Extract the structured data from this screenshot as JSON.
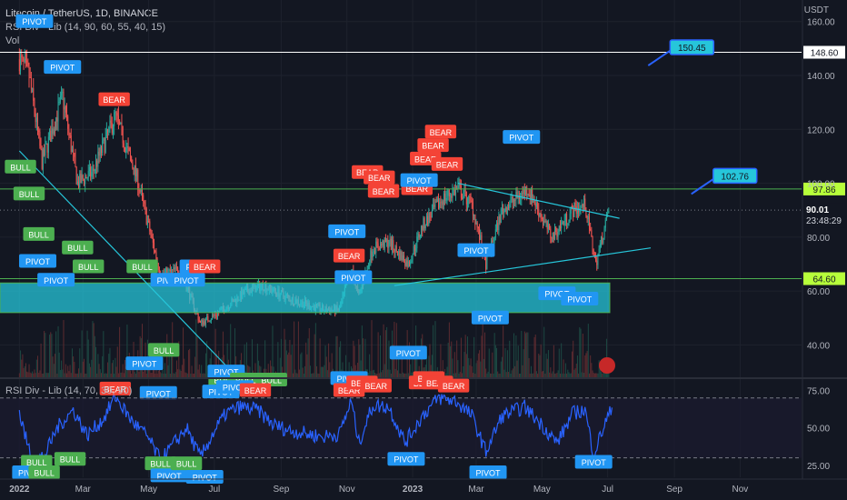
{
  "header": {
    "symbol": "Litecoin / TetherUS, 1D, BINANCE",
    "indicator": "RSI Div - Lib (14, 90, 60, 55, 40, 15)",
    "volume": "Vol",
    "currency": "USDT"
  },
  "colors": {
    "background": "#131722",
    "candle_up": "#26a69a",
    "candle_down": "#ef5350",
    "pivot": "#2196f3",
    "bull": "#4caf50",
    "bear": "#f44336",
    "zone": "#26c6da",
    "rsi_line": "#2962ff"
  },
  "chart_data": [
    {
      "type": "candlestick",
      "title": "Litecoin / TetherUS, 1D, BINANCE",
      "y_unit": "USDT",
      "y_range": [
        28,
        168
      ],
      "y_ticks": [
        "160.00",
        "140.00",
        "120.00",
        "100.00",
        "80.00",
        "60.00",
        "40.00"
      ],
      "x_ticks": [
        "2022",
        "Mar",
        "May",
        "Jul",
        "Sep",
        "Nov",
        "2023",
        "Mar",
        "May",
        "Jul",
        "Sep",
        "Nov"
      ],
      "price_trend_points": [
        [
          "2022-01-01",
          146
        ],
        [
          "2022-01-10",
          140
        ],
        [
          "2022-01-22",
          108
        ],
        [
          "2022-02-10",
          132
        ],
        [
          "2022-02-24",
          100
        ],
        [
          "2022-03-10",
          104
        ],
        [
          "2022-03-31",
          125
        ],
        [
          "2022-04-20",
          102
        ],
        [
          "2022-05-12",
          66
        ],
        [
          "2022-05-30",
          68
        ],
        [
          "2022-06-18",
          48
        ],
        [
          "2022-07-05",
          52
        ],
        [
          "2022-07-31",
          60
        ],
        [
          "2022-08-15",
          62
        ],
        [
          "2022-09-10",
          57
        ],
        [
          "2022-10-10",
          53
        ],
        [
          "2022-10-25",
          53
        ],
        [
          "2022-11-05",
          68
        ],
        [
          "2022-11-12",
          58
        ],
        [
          "2022-11-25",
          76
        ],
        [
          "2022-12-10",
          78
        ],
        [
          "2022-12-28",
          70
        ],
        [
          "2023-01-10",
          84
        ],
        [
          "2023-01-28",
          94
        ],
        [
          "2023-02-12",
          98
        ],
        [
          "2023-02-25",
          92
        ],
        [
          "2023-03-10",
          70
        ],
        [
          "2023-03-25",
          90
        ],
        [
          "2023-04-18",
          98
        ],
        [
          "2023-05-10",
          80
        ],
        [
          "2023-05-30",
          90
        ],
        [
          "2023-06-10",
          92
        ],
        [
          "2023-06-20",
          70
        ],
        [
          "2023-07-02",
          90
        ]
      ],
      "horizontal_levels": [
        {
          "label": "148.60",
          "value": 148.6,
          "color": "#ffffff"
        },
        {
          "label": "97.86",
          "value": 97.86,
          "color": "#4caf50"
        },
        {
          "label": "64.60",
          "value": 64.6,
          "color": "#4caf50"
        }
      ],
      "last_price": {
        "label": "90.01",
        "countdown": "23:48:29",
        "value": 90.01
      },
      "zone": {
        "low": 52,
        "high": 63
      },
      "targets": [
        {
          "label": "150.45",
          "date": "2023-09-02",
          "value": 150.45
        },
        {
          "label": "102.76",
          "date": "2023-10-12",
          "value": 102.76
        }
      ],
      "trendlines": [
        {
          "from": [
            "2022-01-01",
            112
          ],
          "to": [
            "2022-07-15",
            31
          ]
        },
        {
          "from": [
            "2023-02-12",
            100
          ],
          "to": [
            "2023-07-12",
            87
          ]
        },
        {
          "from": [
            "2022-12-15",
            62
          ],
          "to": [
            "2023-08-10",
            76
          ]
        }
      ],
      "signals": [
        {
          "label": "PIVOT",
          "date": "2022-01-15",
          "value": 160,
          "color": "#2196f3"
        },
        {
          "label": "PIVOT",
          "date": "2022-02-10",
          "value": 143,
          "color": "#2196f3"
        },
        {
          "label": "BEAR",
          "date": "2022-03-30",
          "value": 131,
          "color": "#f44336"
        },
        {
          "label": "BULL",
          "date": "2022-01-02",
          "value": 106,
          "color": "#4caf50"
        },
        {
          "label": "BULL",
          "date": "2022-01-10",
          "value": 96,
          "color": "#4caf50"
        },
        {
          "label": "BULL",
          "date": "2022-01-19",
          "value": 81,
          "color": "#4caf50"
        },
        {
          "label": "BULL",
          "date": "2022-02-24",
          "value": 76,
          "color": "#4caf50"
        },
        {
          "label": "BULL",
          "date": "2022-03-06",
          "value": 69,
          "color": "#4caf50"
        },
        {
          "label": "PIVOT",
          "date": "2022-01-18",
          "value": 71,
          "color": "#2196f3"
        },
        {
          "label": "PIVOT",
          "date": "2022-02-04",
          "value": 64,
          "color": "#2196f3"
        },
        {
          "label": "BULL",
          "date": "2022-04-25",
          "value": 69,
          "color": "#4caf50"
        },
        {
          "label": "PIVOT",
          "date": "2022-05-20",
          "value": 64,
          "color": "#2196f3"
        },
        {
          "label": "PIVOT",
          "date": "2022-06-05",
          "value": 64,
          "color": "#2196f3"
        },
        {
          "label": "PIVOT",
          "date": "2022-06-16",
          "value": 69,
          "color": "#2196f3"
        },
        {
          "label": "BEAR",
          "date": "2022-06-22",
          "value": 69,
          "color": "#f44336"
        },
        {
          "label": "BULL",
          "date": "2022-05-15",
          "value": 38,
          "color": "#4caf50"
        },
        {
          "label": "PIVOT",
          "date": "2022-04-27",
          "value": 33,
          "color": "#2196f3"
        },
        {
          "label": "PIVOT",
          "date": "2022-05-10",
          "value": 22,
          "color": "#2196f3"
        },
        {
          "label": "BULL",
          "date": "2022-07-10",
          "value": 27,
          "color": "#4caf50"
        },
        {
          "label": "PIVOT",
          "date": "2022-07-12",
          "value": 30,
          "color": "#2196f3"
        },
        {
          "label": "BULL",
          "date": "2022-07-30",
          "value": 27,
          "color": "#4caf50"
        },
        {
          "label": "BULL",
          "date": "2022-08-23",
          "value": 27,
          "color": "#4caf50"
        },
        {
          "label": "PIVOT",
          "date": "2022-11-01",
          "value": 82,
          "color": "#2196f3"
        },
        {
          "label": "BEAR",
          "date": "2022-11-03",
          "value": 73,
          "color": "#f44336"
        },
        {
          "label": "PIVOT",
          "date": "2022-11-07",
          "value": 65,
          "color": "#2196f3"
        },
        {
          "label": "BEAR",
          "date": "2022-11-20",
          "value": 104,
          "color": "#f44336"
        },
        {
          "label": "BEAR",
          "date": "2022-12-01",
          "value": 102,
          "color": "#f44336"
        },
        {
          "label": "BEAR",
          "date": "2022-12-05",
          "value": 97,
          "color": "#f44336"
        },
        {
          "label": "PIVOT",
          "date": "2022-12-28",
          "value": 37,
          "color": "#2196f3"
        },
        {
          "label": "BEAR",
          "date": "2023-01-05",
          "value": 98,
          "color": "#f44336"
        },
        {
          "label": "PIVOT",
          "date": "2023-01-07",
          "value": 101,
          "color": "#2196f3"
        },
        {
          "label": "BEAR",
          "date": "2023-01-13",
          "value": 109,
          "color": "#f44336"
        },
        {
          "label": "BEAR",
          "date": "2023-01-20",
          "value": 114,
          "color": "#f44336"
        },
        {
          "label": "BEAR",
          "date": "2023-01-27",
          "value": 119,
          "color": "#f44336"
        },
        {
          "label": "BEAR",
          "date": "2023-02-02",
          "value": 107,
          "color": "#f44336"
        },
        {
          "label": "PIVOT",
          "date": "2023-03-01",
          "value": 75,
          "color": "#2196f3"
        },
        {
          "label": "PIVOT",
          "date": "2023-03-14",
          "value": 50,
          "color": "#2196f3"
        },
        {
          "label": "PIVOT",
          "date": "2023-04-12",
          "value": 117,
          "color": "#2196f3"
        },
        {
          "label": "PIVOT",
          "date": "2023-05-15",
          "value": 59,
          "color": "#2196f3"
        },
        {
          "label": "PIVOT",
          "date": "2023-06-05",
          "value": 57,
          "color": "#2196f3"
        }
      ]
    },
    {
      "type": "line",
      "title": "RSI Div - Lib (14, 70, 30, 90)",
      "y_range": [
        17,
        82
      ],
      "y_ticks": [
        "75.00",
        "50.00",
        "25.00"
      ],
      "levels": [
        70,
        30
      ],
      "rsi_points": [
        [
          "2022-01-01",
          60
        ],
        [
          "2022-01-08",
          40
        ],
        [
          "2022-01-15",
          28
        ],
        [
          "2022-01-25",
          32
        ],
        [
          "2022-02-05",
          50
        ],
        [
          "2022-02-20",
          62
        ],
        [
          "2022-03-05",
          45
        ],
        [
          "2022-03-20",
          56
        ],
        [
          "2022-03-31",
          71
        ],
        [
          "2022-04-15",
          55
        ],
        [
          "2022-04-30",
          44
        ],
        [
          "2022-05-12",
          28
        ],
        [
          "2022-05-25",
          40
        ],
        [
          "2022-06-05",
          50
        ],
        [
          "2022-06-18",
          30
        ],
        [
          "2022-07-01",
          48
        ],
        [
          "2022-07-12",
          60
        ],
        [
          "2022-07-25",
          64
        ],
        [
          "2022-08-10",
          62
        ],
        [
          "2022-08-25",
          52
        ],
        [
          "2022-09-10",
          48
        ],
        [
          "2022-09-25",
          46
        ],
        [
          "2022-10-10",
          44
        ],
        [
          "2022-10-25",
          46
        ],
        [
          "2022-11-05",
          68
        ],
        [
          "2022-11-12",
          40
        ],
        [
          "2022-11-25",
          65
        ],
        [
          "2022-12-10",
          64
        ],
        [
          "2022-12-25",
          40
        ],
        [
          "2023-01-10",
          58
        ],
        [
          "2023-01-25",
          70
        ],
        [
          "2023-02-10",
          68
        ],
        [
          "2023-02-25",
          58
        ],
        [
          "2023-03-10",
          34
        ],
        [
          "2023-03-25",
          58
        ],
        [
          "2023-04-15",
          64
        ],
        [
          "2023-05-01",
          52
        ],
        [
          "2023-05-15",
          40
        ],
        [
          "2023-05-30",
          60
        ],
        [
          "2023-06-10",
          62
        ],
        [
          "2023-06-18",
          32
        ],
        [
          "2023-06-28",
          52
        ],
        [
          "2023-07-05",
          63
        ]
      ],
      "signals": [
        {
          "label": "BEAR",
          "date": "2022-03-31",
          "value": 76,
          "color": "#f44336"
        },
        {
          "label": "BULL",
          "date": "2022-01-17",
          "value": 27,
          "color": "#4caf50"
        },
        {
          "label": "BULL",
          "date": "2022-02-17",
          "value": 29,
          "color": "#4caf50"
        },
        {
          "label": "PIV",
          "date": "2022-01-06",
          "value": 20,
          "color": "#2196f3"
        },
        {
          "label": "BULL",
          "date": "2022-01-24",
          "value": 20,
          "color": "#4caf50"
        },
        {
          "label": "BULL",
          "date": "2022-05-12",
          "value": 26,
          "color": "#4caf50"
        },
        {
          "label": "PIVOT",
          "date": "2022-05-20",
          "value": 18,
          "color": "#2196f3"
        },
        {
          "label": "BULL",
          "date": "2022-06-05",
          "value": 26,
          "color": "#4caf50"
        },
        {
          "label": "PIVOT",
          "date": "2022-06-22",
          "value": 17,
          "color": "#2196f3"
        },
        {
          "label": "PIVOT",
          "date": "2022-07-07",
          "value": 74,
          "color": "#2196f3"
        },
        {
          "label": "PIVOT",
          "date": "2022-07-20",
          "value": 77,
          "color": "#2196f3"
        },
        {
          "label": "BEAR",
          "date": "2022-08-08",
          "value": 75,
          "color": "#f44336"
        },
        {
          "label": "PIVOT",
          "date": "2022-11-03",
          "value": 83,
          "color": "#2196f3"
        },
        {
          "label": "BEAR",
          "date": "2022-11-03",
          "value": 75,
          "color": "#f44336"
        },
        {
          "label": "BEAR",
          "date": "2022-11-15",
          "value": 80,
          "color": "#f44336"
        },
        {
          "label": "BEAR",
          "date": "2022-11-28",
          "value": 78,
          "color": "#f44336"
        },
        {
          "label": "PIVOT",
          "date": "2022-12-26",
          "value": 29,
          "color": "#2196f3"
        },
        {
          "label": "BEAR",
          "date": "2023-01-12",
          "value": 80,
          "color": "#f44336"
        },
        {
          "label": "BEAR",
          "date": "2023-01-16",
          "value": 83,
          "color": "#f44336"
        },
        {
          "label": "BEAR",
          "date": "2023-01-24",
          "value": 80,
          "color": "#f44336"
        },
        {
          "label": "BEAR",
          "date": "2023-02-08",
          "value": 78,
          "color": "#f44336"
        },
        {
          "label": "PIVOT",
          "date": "2023-03-12",
          "value": 20,
          "color": "#2196f3"
        },
        {
          "label": "PIVOT",
          "date": "2023-06-18",
          "value": 27,
          "color": "#2196f3"
        }
      ]
    }
  ]
}
